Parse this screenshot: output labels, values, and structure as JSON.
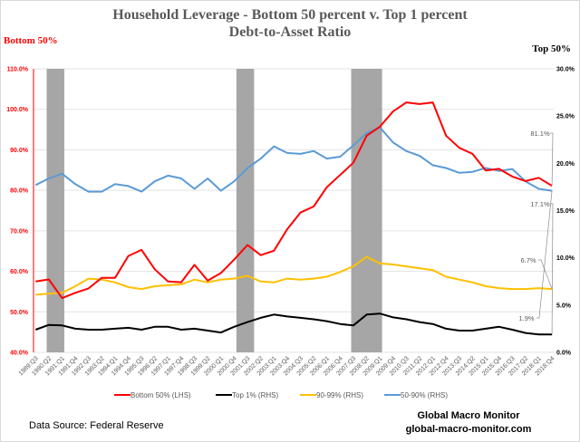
{
  "chart_data": {
    "type": "line",
    "title": "Household Leverage - Bottom 50 percent v. Top 1 percent",
    "subtitle": "Debt-to-Asset Ratio",
    "ylabel_left": "Bottom 50%",
    "ylabel_right": "Top 50%",
    "ylim_left": [
      40,
      110
    ],
    "ylim_right": [
      0,
      30
    ],
    "yticks_left": [
      "40.0%",
      "50.0%",
      "60.0%",
      "70.0%",
      "80.0%",
      "90.0%",
      "100.0%",
      "110.0%"
    ],
    "yticks_right": [
      "0.0%",
      "5.0%",
      "10.0%",
      "15.0%",
      "20.0%",
      "25.0%",
      "30.0%"
    ],
    "grid": true,
    "legend_placement": "bottom",
    "categories": [
      "1989:Q3",
      "1990:Q2",
      "1991:Q1",
      "1991:Q4",
      "1992:Q3",
      "1993:Q2",
      "1994:Q1",
      "1994:Q4",
      "1995:Q3",
      "1996:Q2",
      "1997:Q1",
      "1997:Q4",
      "1998:Q3",
      "1999:Q2",
      "2000:Q1",
      "2000:Q4",
      "2001:Q3",
      "2002:Q2",
      "2003:Q1",
      "2003:Q4",
      "2004:Q3",
      "2005:Q2",
      "2006:Q1",
      "2006:Q4",
      "2007:Q3",
      "2008:Q2",
      "2009:Q1",
      "2009:Q4",
      "2010:Q3",
      "2011:Q2",
      "2012:Q1",
      "2012:Q4",
      "2013:Q3",
      "2014:Q2",
      "2015:Q1",
      "2015:Q4",
      "2016:Q3",
      "2017:Q2",
      "2018:Q1",
      "2018:Q4"
    ],
    "series": [
      {
        "name": "Bottom 50% (LHS)",
        "axis": "left",
        "color": "#ff0000",
        "values": [
          57.5,
          58.0,
          53.4,
          54.7,
          55.8,
          58.4,
          58.4,
          63.8,
          65.3,
          60.5,
          57.5,
          57.3,
          61.6,
          57.7,
          59.6,
          62.9,
          66.5,
          64.0,
          65.1,
          70.4,
          74.5,
          76.0,
          80.8,
          83.8,
          86.8,
          93.5,
          95.7,
          99.5,
          101.7,
          101.3,
          101.7,
          93.5,
          90.5,
          89.0,
          84.9,
          85.3,
          83.4,
          82.3,
          83.1,
          81.1
        ]
      },
      {
        "name": "Top 1% (RHS)",
        "axis": "right",
        "color": "#000000",
        "values": [
          2.4,
          2.9,
          2.85,
          2.5,
          2.4,
          2.4,
          2.5,
          2.6,
          2.4,
          2.7,
          2.7,
          2.4,
          2.5,
          2.3,
          2.1,
          2.7,
          3.2,
          3.65,
          4.0,
          3.8,
          3.65,
          3.5,
          3.3,
          3.0,
          2.85,
          4.0,
          4.1,
          3.7,
          3.5,
          3.2,
          3.0,
          2.5,
          2.3,
          2.3,
          2.5,
          2.7,
          2.4,
          2.05,
          1.9,
          1.9
        ]
      },
      {
        "name": "90-99% (RHS)",
        "axis": "right",
        "color": "#ffc000",
        "values": [
          6.1,
          6.2,
          6.3,
          7.0,
          7.8,
          7.7,
          7.4,
          6.9,
          6.7,
          7.0,
          7.1,
          7.2,
          7.7,
          7.4,
          7.7,
          7.8,
          8.1,
          7.5,
          7.4,
          7.8,
          7.7,
          7.8,
          8.0,
          8.5,
          9.1,
          10.1,
          9.4,
          9.3,
          9.1,
          8.9,
          8.7,
          8.0,
          7.7,
          7.4,
          7.0,
          6.8,
          6.7,
          6.7,
          6.8,
          6.7
        ]
      },
      {
        "name": "50-90% (RHS)",
        "axis": "right",
        "color": "#5b9bd5",
        "values": [
          17.7,
          18.4,
          18.9,
          17.8,
          17.0,
          17.0,
          17.8,
          17.6,
          17.0,
          18.1,
          18.7,
          18.4,
          17.3,
          18.4,
          17.1,
          18.1,
          19.5,
          20.5,
          21.8,
          21.1,
          21.0,
          21.3,
          20.5,
          20.7,
          21.9,
          23.2,
          23.8,
          22.2,
          21.3,
          20.8,
          19.8,
          19.5,
          19.0,
          19.1,
          19.5,
          19.2,
          19.4,
          18.1,
          17.3,
          17.1
        ]
      }
    ],
    "recessions": [
      [
        "1990:Q2",
        "1991:Q1"
      ],
      [
        "2001:Q1",
        "2001:Q4"
      ],
      [
        "2007:Q3",
        "2009:Q1"
      ]
    ],
    "recession_color": "#a6a6a6",
    "annotations": [
      "81.1%",
      "17.1%",
      "6.7%",
      "1.9%"
    ]
  },
  "footer": {
    "source": "Data Source:  Federal Reserve",
    "brand": "Global Macro Monitor",
    "url": "global-macro-monitor.com"
  }
}
